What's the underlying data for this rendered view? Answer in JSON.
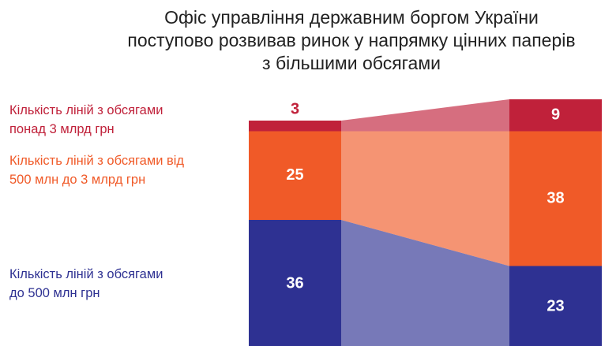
{
  "chart_data": {
    "type": "stacked-bar",
    "title": "Офіс управління державним боргом України\nпоступово розвивав ринок у напрямку цінних паперів\nз більшими обсягами",
    "categories": [
      null,
      null
    ],
    "series": [
      {
        "name": "Кількість ліній з обсягами\nдо 500 млн грн",
        "color": "#2e3192",
        "values": [
          36,
          23
        ]
      },
      {
        "name": "Кількість ліній з обсягами від\n500 млн до 3 млрд грн",
        "color": "#f05a28",
        "values": [
          25,
          38
        ]
      },
      {
        "name": "Кількість ліній з обсягами\nпонад 3 млрд грн",
        "color": "#c0213a",
        "values": [
          3,
          9
        ]
      }
    ]
  }
}
